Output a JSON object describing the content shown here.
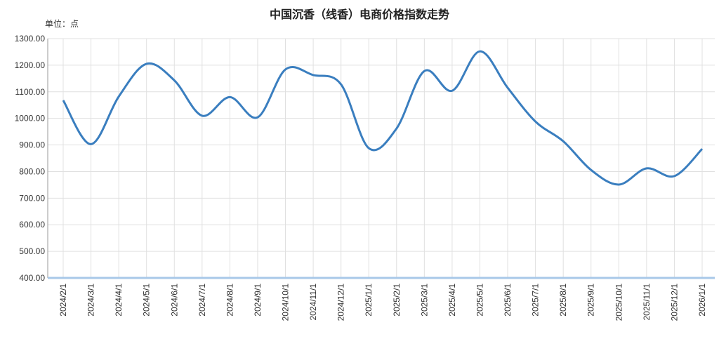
{
  "chart_data": {
    "type": "line",
    "title": "中国沉香（线香）电商价格指数走势",
    "y_axis_label": "单位：点",
    "categories": [
      "2024/2/1",
      "2024/3/1",
      "2024/4/1",
      "2024/5/1",
      "2024/6/1",
      "2024/7/1",
      "2024/8/1",
      "2024/9/1",
      "2024/10/1",
      "2024/11/1",
      "2024/12/1",
      "2025/1/1",
      "2025/2/1",
      "2025/3/1",
      "2025/4/1",
      "2025/5/1",
      "2025/6/1",
      "2025/7/1",
      "2025/8/1",
      "2025/9/1",
      "2025/10/1",
      "2025/11/1",
      "2025/12/1",
      "2026/1/1"
    ],
    "series": [
      {
        "color": "#3a7ebf",
        "values": [
          1068,
          903,
          1082,
          1205,
          1143,
          1010,
          1080,
          1004,
          1184,
          1163,
          1128,
          888,
          962,
          1178,
          1104,
          1252,
          1115,
          988,
          914,
          806,
          751,
          812,
          783,
          885
        ]
      }
    ],
    "ylim": [
      400,
      1300
    ],
    "yticks": [
      {
        "value": 400,
        "label": "400.00"
      },
      {
        "value": 500,
        "label": "500.00"
      },
      {
        "value": 600,
        "label": "600.00"
      },
      {
        "value": 700,
        "label": "700.00"
      },
      {
        "value": 800,
        "label": "800.00"
      },
      {
        "value": 900,
        "label": "900.00"
      },
      {
        "value": 1000,
        "label": "1000.00"
      },
      {
        "value": 1100,
        "label": "1100.00"
      },
      {
        "value": 1200,
        "label": "1200.00"
      },
      {
        "value": 1300,
        "label": "1300.00"
      }
    ],
    "grid": true
  }
}
